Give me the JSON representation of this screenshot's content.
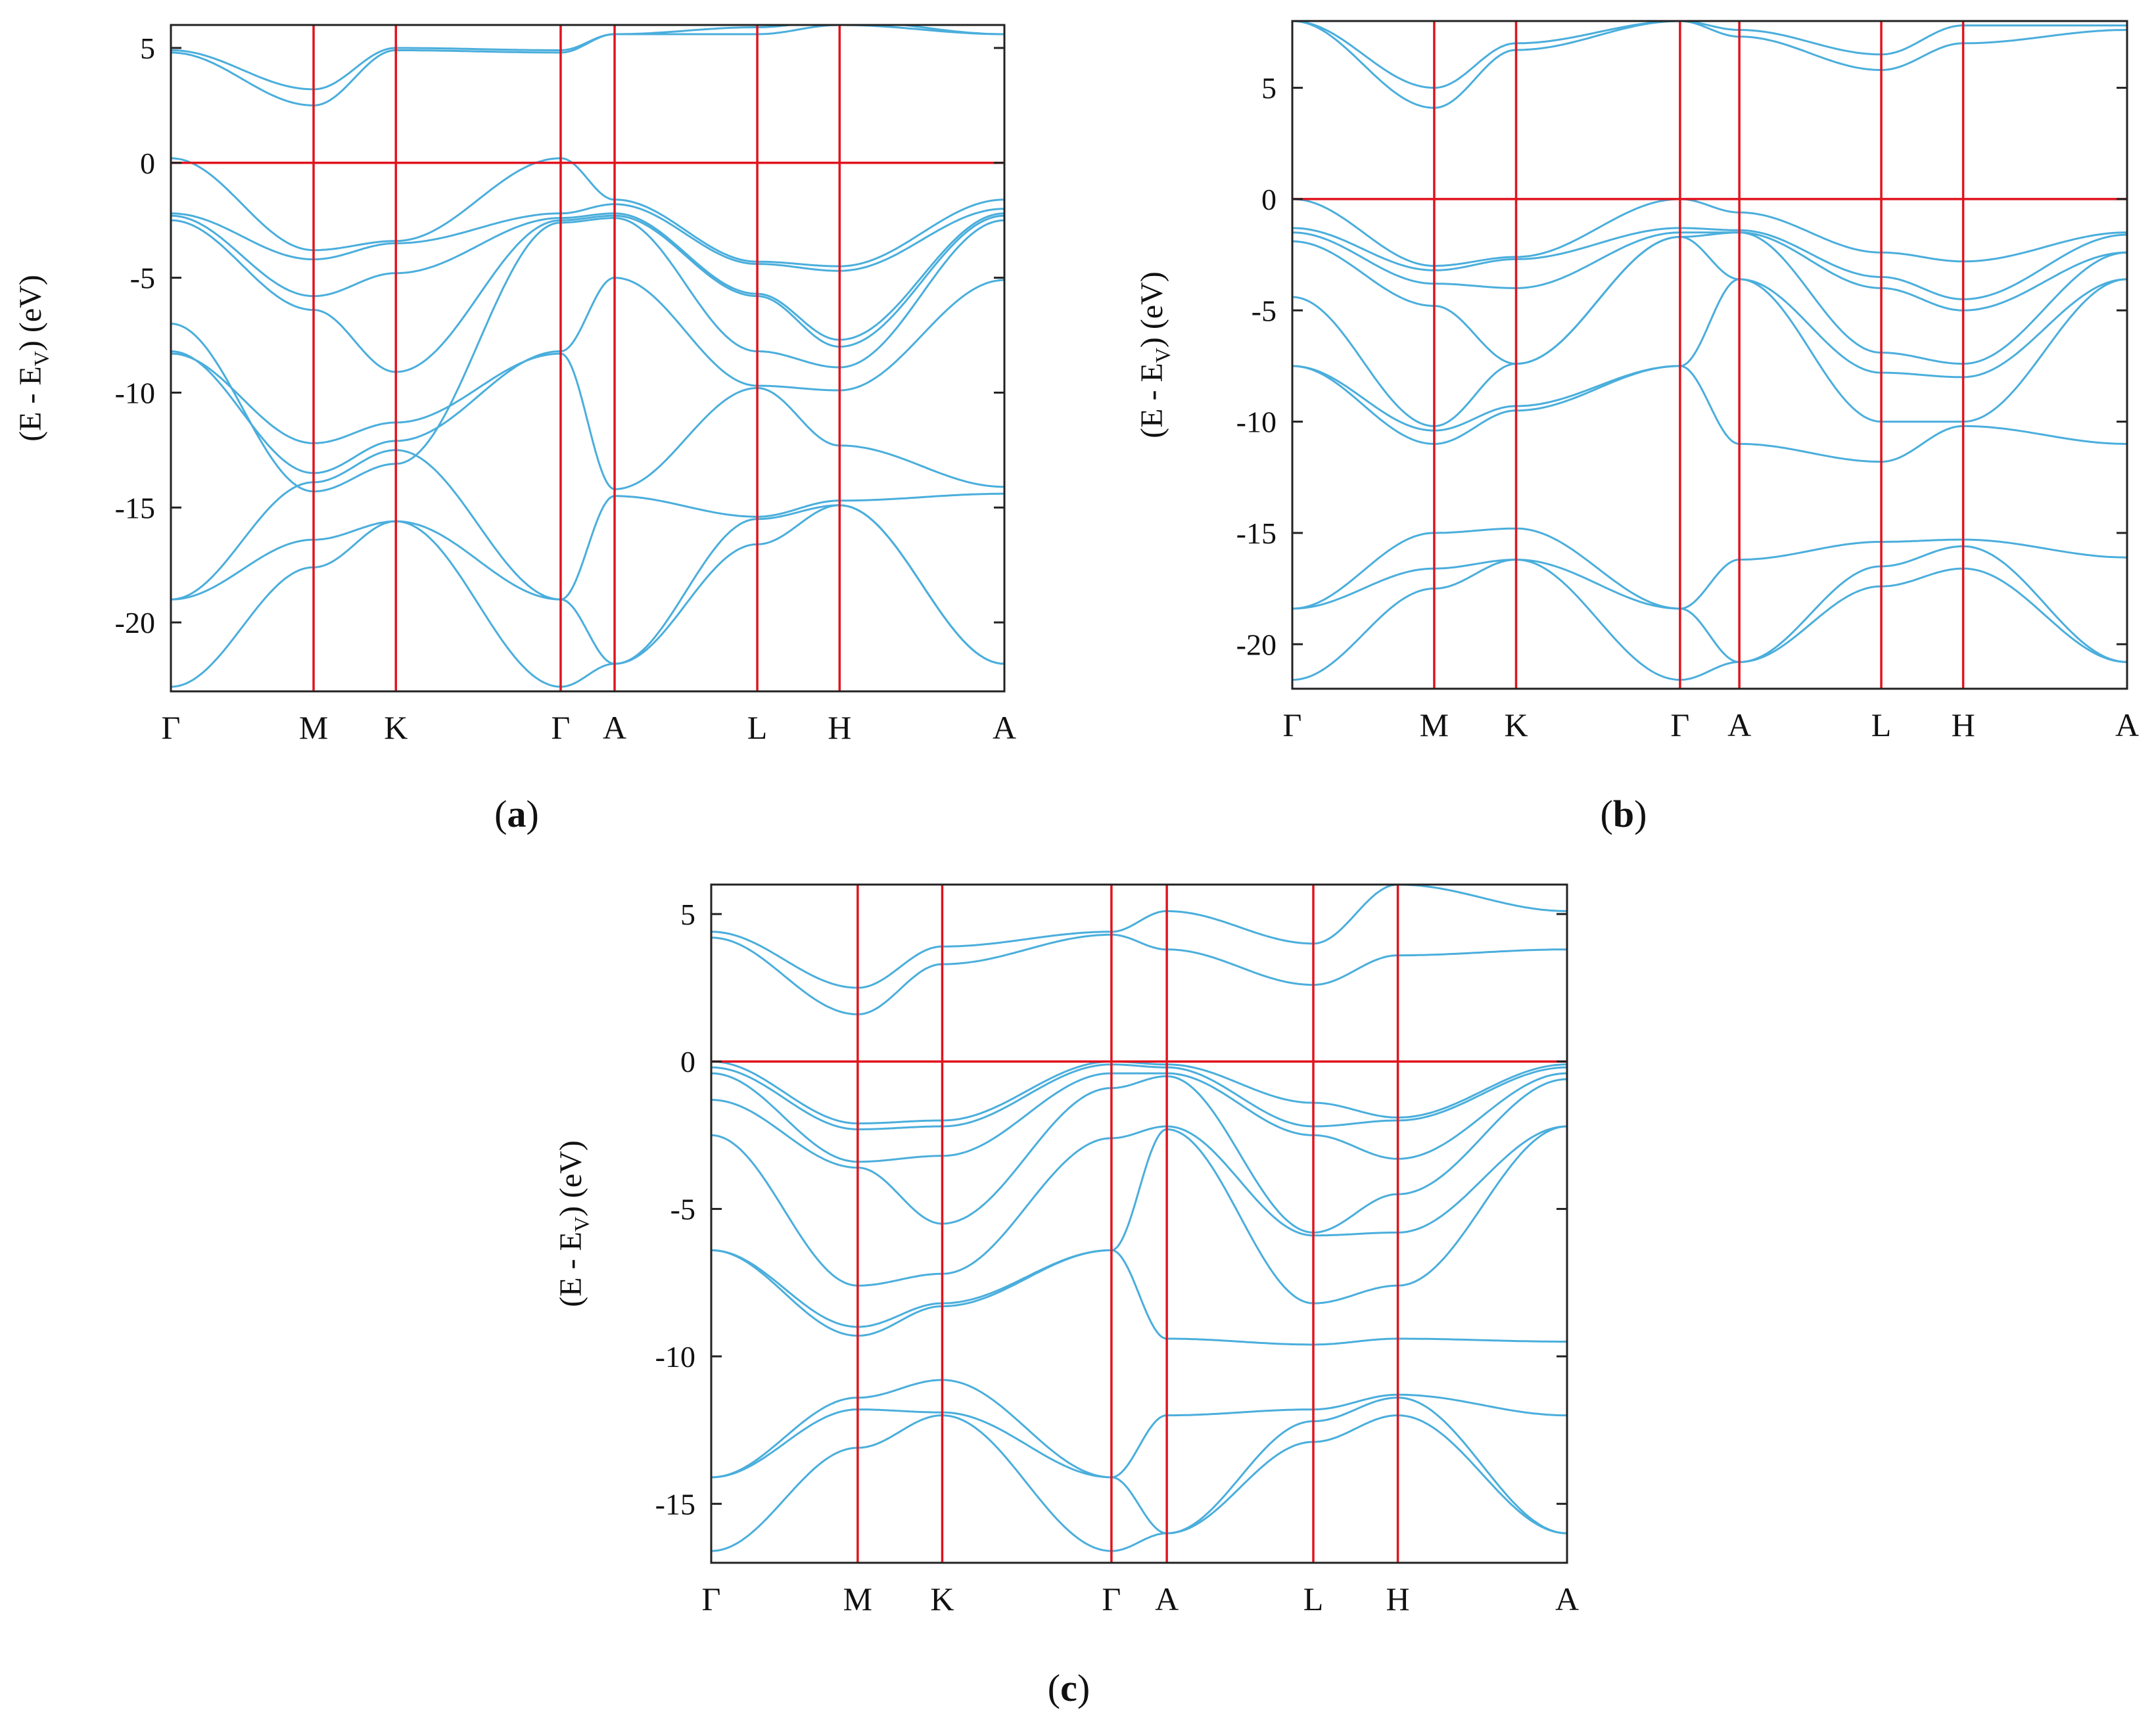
{
  "colors": {
    "bands": "#4aaedc",
    "guides": "#e0141e",
    "frame": "#222222"
  },
  "chart_data": [
    {
      "type": "line",
      "panel_label": "a",
      "ylabel_main": "(E - E",
      "ylabel_sub": "V",
      "ylabel_tail": ") (eV)",
      "ylim": [
        -23,
        6
      ],
      "yticks": [
        5,
        0,
        -5,
        -10,
        -15,
        -20
      ],
      "ytick_labels": [
        "5",
        "0",
        "-5",
        "-10",
        "-15",
        "-20"
      ],
      "kpath": [
        {
          "label": "Γ",
          "x": 0.0
        },
        {
          "label": "M",
          "x": 1.0
        },
        {
          "label": "K",
          "x": 1.577
        },
        {
          "label": "Γ",
          "x": 2.732
        },
        {
          "label": "A",
          "x": 3.11
        },
        {
          "label": "L",
          "x": 4.11
        },
        {
          "label": "H",
          "x": 4.687
        },
        {
          "label": "A",
          "x": 5.842
        }
      ],
      "hline_y": 0,
      "series": [
        {
          "values": [
            -22.8,
            -17.6,
            -15.6,
            -22.8,
            -21.8,
            -16.6,
            -14.9,
            -21.8
          ]
        },
        {
          "values": [
            -19.0,
            -16.4,
            -15.6,
            -19.0,
            -21.8,
            -15.5,
            -14.9,
            -21.8
          ]
        },
        {
          "values": [
            -19.0,
            -13.9,
            -12.5,
            -19.0,
            -14.5,
            -15.4,
            -14.7,
            -14.4
          ]
        },
        {
          "values": [
            -8.3,
            -12.2,
            -11.3,
            -8.3,
            -14.2,
            -9.8,
            -12.3,
            -14.1
          ]
        },
        {
          "values": [
            -8.2,
            -13.5,
            -12.1,
            -8.2,
            -5.0,
            -9.7,
            -9.9,
            -5.1
          ]
        },
        {
          "values": [
            -7.0,
            -14.3,
            -13.1,
            -2.6,
            -2.4,
            -8.2,
            -8.9,
            -2.5
          ]
        },
        {
          "values": [
            -2.5,
            -6.4,
            -9.1,
            -2.5,
            -2.3,
            -5.8,
            -8.0,
            -2.3
          ]
        },
        {
          "values": [
            -2.3,
            -5.8,
            -4.8,
            -2.4,
            -2.2,
            -5.7,
            -7.7,
            -2.2
          ]
        },
        {
          "values": [
            -2.2,
            -4.2,
            -3.5,
            -2.2,
            -1.8,
            -4.4,
            -4.7,
            -2.0
          ]
        },
        {
          "values": [
            0.2,
            -3.8,
            -3.4,
            0.2,
            -1.6,
            -4.3,
            -4.5,
            -1.6
          ]
        },
        {
          "values": [
            4.8,
            2.5,
            4.9,
            4.8,
            5.6,
            5.6,
            6.0,
            5.6
          ]
        },
        {
          "values": [
            4.9,
            3.2,
            5.0,
            4.9,
            5.6,
            5.9,
            6.2,
            5.6
          ]
        }
      ]
    },
    {
      "type": "line",
      "panel_label": "b",
      "ylabel_main": "(E - E",
      "ylabel_sub": "V",
      "ylabel_tail": ") (eV)",
      "ylim": [
        -22,
        8
      ],
      "yticks": [
        5,
        0,
        -5,
        -10,
        -15,
        -20
      ],
      "ytick_labels": [
        "5",
        "0",
        "-5",
        "-10",
        "-15",
        "-20"
      ],
      "kpath": [
        {
          "label": "Γ",
          "x": 0.0
        },
        {
          "label": "M",
          "x": 1.0
        },
        {
          "label": "K",
          "x": 1.577
        },
        {
          "label": "Γ",
          "x": 2.732
        },
        {
          "label": "A",
          "x": 3.15
        },
        {
          "label": "L",
          "x": 4.15
        },
        {
          "label": "H",
          "x": 4.727
        },
        {
          "label": "A",
          "x": 5.882
        }
      ],
      "hline_y": 0,
      "series": [
        {
          "values": [
            -21.6,
            -17.5,
            -16.2,
            -21.6,
            -20.8,
            -17.4,
            -16.6,
            -20.8
          ]
        },
        {
          "values": [
            -18.4,
            -16.6,
            -16.2,
            -18.4,
            -20.8,
            -16.5,
            -15.6,
            -20.8
          ]
        },
        {
          "values": [
            -18.4,
            -15.0,
            -14.8,
            -18.4,
            -16.2,
            -15.4,
            -15.3,
            -16.1
          ]
        },
        {
          "values": [
            -7.5,
            -11.0,
            -9.5,
            -7.5,
            -11.0,
            -11.8,
            -10.2,
            -11.0
          ]
        },
        {
          "values": [
            -7.5,
            -10.4,
            -9.3,
            -7.5,
            -3.6,
            -10.0,
            -10.0,
            -3.6
          ]
        },
        {
          "values": [
            -4.4,
            -10.2,
            -7.4,
            -1.7,
            -3.6,
            -7.8,
            -8.0,
            -3.6
          ]
        },
        {
          "values": [
            -1.9,
            -4.8,
            -7.4,
            -1.7,
            -1.5,
            -6.9,
            -7.4,
            -2.4
          ]
        },
        {
          "values": [
            -1.5,
            -3.8,
            -4.0,
            -1.5,
            -1.5,
            -4.0,
            -5.0,
            -2.4
          ]
        },
        {
          "values": [
            -1.3,
            -3.2,
            -2.7,
            -1.3,
            -1.4,
            -3.5,
            -4.5,
            -1.6
          ]
        },
        {
          "values": [
            0.0,
            -3.0,
            -2.6,
            0.0,
            -0.6,
            -2.4,
            -2.8,
            -1.5
          ]
        },
        {
          "values": [
            8.0,
            4.1,
            6.7,
            8.0,
            7.3,
            5.8,
            7.0,
            7.6
          ]
        },
        {
          "values": [
            8.0,
            5.0,
            7.0,
            8.0,
            7.6,
            6.5,
            7.8,
            7.8
          ]
        }
      ]
    },
    {
      "type": "line",
      "panel_label": "c",
      "ylabel_main": "(E - E",
      "ylabel_sub": "V",
      "ylabel_tail": ") (eV)",
      "ylim": [
        -17,
        6
      ],
      "yticks": [
        5,
        0,
        -5,
        -10,
        -15
      ],
      "ytick_labels": [
        "5",
        "0",
        "-5",
        "-10",
        "-15"
      ],
      "kpath": [
        {
          "label": "Γ",
          "x": 0.0
        },
        {
          "label": "M",
          "x": 1.0
        },
        {
          "label": "K",
          "x": 1.577
        },
        {
          "label": "Γ",
          "x": 2.732
        },
        {
          "label": "A",
          "x": 3.11
        },
        {
          "label": "L",
          "x": 4.11
        },
        {
          "label": "H",
          "x": 4.687
        },
        {
          "label": "A",
          "x": 5.842
        }
      ],
      "hline_y": 0,
      "series": [
        {
          "values": [
            -16.6,
            -13.1,
            -12.0,
            -16.6,
            -16.0,
            -12.9,
            -12.0,
            -16.0
          ]
        },
        {
          "values": [
            -14.1,
            -11.8,
            -11.9,
            -14.1,
            -16.0,
            -12.2,
            -11.4,
            -16.0
          ]
        },
        {
          "values": [
            -14.1,
            -11.4,
            -10.8,
            -14.1,
            -12.0,
            -11.8,
            -11.3,
            -12.0
          ]
        },
        {
          "values": [
            -6.4,
            -9.3,
            -8.3,
            -6.4,
            -9.4,
            -9.6,
            -9.4,
            -9.5
          ]
        },
        {
          "values": [
            -6.4,
            -9.0,
            -8.2,
            -6.4,
            -2.3,
            -8.2,
            -7.6,
            -2.2
          ]
        },
        {
          "values": [
            -2.5,
            -7.6,
            -7.2,
            -2.6,
            -2.2,
            -5.9,
            -5.8,
            -2.2
          ]
        },
        {
          "values": [
            -1.3,
            -3.6,
            -5.5,
            -0.9,
            -0.5,
            -5.8,
            -4.5,
            -0.6
          ]
        },
        {
          "values": [
            -0.4,
            -3.4,
            -3.2,
            -0.4,
            -0.4,
            -2.5,
            -3.3,
            -0.4
          ]
        },
        {
          "values": [
            -0.2,
            -2.3,
            -2.2,
            -0.1,
            -0.2,
            -2.2,
            -2.0,
            -0.2
          ]
        },
        {
          "values": [
            0.0,
            -2.1,
            -2.0,
            0.0,
            -0.1,
            -1.4,
            -1.9,
            -0.1
          ]
        },
        {
          "values": [
            4.2,
            1.6,
            3.3,
            4.3,
            3.8,
            2.6,
            3.6,
            3.8
          ]
        },
        {
          "values": [
            4.4,
            2.5,
            3.9,
            4.4,
            5.1,
            4.0,
            6.0,
            5.1
          ]
        }
      ]
    }
  ]
}
